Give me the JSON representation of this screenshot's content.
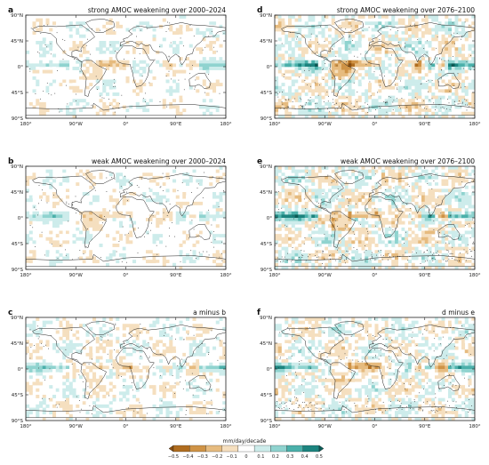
{
  "panels": [
    {
      "letter": "a",
      "title": "strong AMOC weakening over 2000–2024",
      "col": 0,
      "row": 0,
      "amp": 0.45
    },
    {
      "letter": "d",
      "title": "strong AMOC weakening over 2076–2100",
      "col": 1,
      "row": 0,
      "amp": 0.9
    },
    {
      "letter": "b",
      "title": "weak AMOC weakening over 2000–2024",
      "col": 0,
      "row": 1,
      "amp": 0.45
    },
    {
      "letter": "e",
      "title": "weak AMOC weakening over 2076–2100",
      "col": 1,
      "row": 1,
      "amp": 0.9
    },
    {
      "letter": "c",
      "title": "a minus b",
      "col": 0,
      "row": 2,
      "amp": 0.55
    },
    {
      "letter": "f",
      "title": "d minus e",
      "col": 1,
      "row": 2,
      "amp": 0.8
    }
  ],
  "lat_ticks": [
    "90°N",
    "45°N",
    "0°",
    "45°S",
    "90°S"
  ],
  "lon_ticks": [
    "180°",
    "90°W",
    "0°",
    "90°E",
    "180°"
  ],
  "colorbar": {
    "label": "mm/day/decade",
    "ticks": [
      "−0.5",
      "−0.4",
      "−0.3",
      "−0.2",
      "−0.1",
      "0",
      "0.1",
      "0.2",
      "0.3",
      "0.4",
      "0.5"
    ],
    "colors": [
      "#8c4f0f",
      "#b06d1f",
      "#cf9346",
      "#e6bb7f",
      "#f5dfbf",
      "#ffffff",
      "#cdeceb",
      "#8fd3cf",
      "#4bb0aa",
      "#1c847f",
      "#0a5c57"
    ]
  }
}
